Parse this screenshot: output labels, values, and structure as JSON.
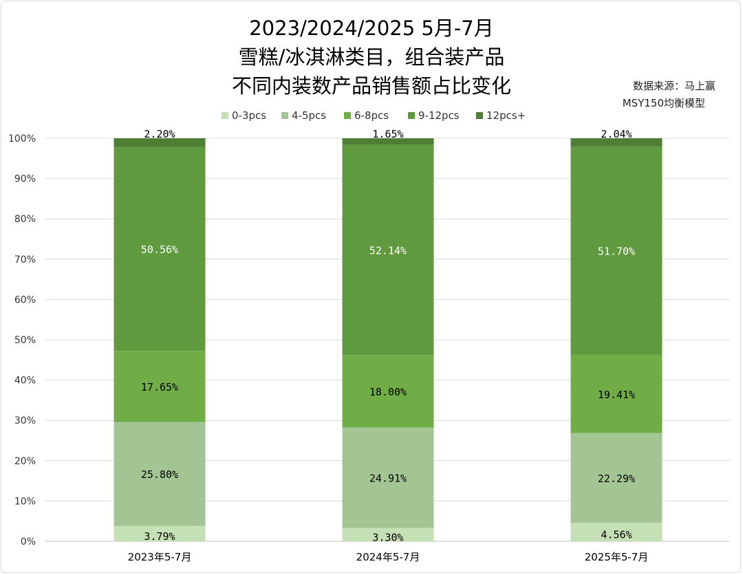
{
  "title_lines": [
    "2023/2024/2025 5月-7月",
    "雪糕/冰淇淋类目，组合装产品",
    "不同内装数产品销售额占比变化"
  ],
  "source": {
    "line1": "数据来源：马上赢",
    "line2": "MSY150均衡模型"
  },
  "colors": {
    "0-3pcs": "#c5e0b4",
    "4-5pcs": "#a2c593",
    "6-8pcs": "#70ad47",
    "9-12pcs": "#609a3e",
    "12pcs+": "#4e7f34"
  },
  "chart_data": {
    "type": "bar",
    "stacked": true,
    "categories": [
      "2023年5-7月",
      "2024年5-7月",
      "2025年5-7月"
    ],
    "series": [
      {
        "name": "0-3pcs",
        "values": [
          3.79,
          3.3,
          4.56
        ],
        "labels": [
          "3.79%",
          "3.30%",
          "4.56%"
        ]
      },
      {
        "name": "4-5pcs",
        "values": [
          25.8,
          24.91,
          22.29
        ],
        "labels": [
          "25.80%",
          "24.91%",
          "22.29%"
        ]
      },
      {
        "name": "6-8pcs",
        "values": [
          17.65,
          18.0,
          19.41
        ],
        "labels": [
          "17.65%",
          "18.00%",
          "19.41%"
        ]
      },
      {
        "name": "9-12pcs",
        "values": [
          50.56,
          52.14,
          51.7
        ],
        "labels": [
          "50.56%",
          "52.14%",
          "51.70%"
        ]
      },
      {
        "name": "12pcs+",
        "values": [
          2.2,
          1.65,
          2.04
        ],
        "labels": [
          "2.20%",
          "1.65%",
          "2.04%"
        ]
      }
    ],
    "y_ticks": [
      "0%",
      "10%",
      "20%",
      "30%",
      "40%",
      "50%",
      "60%",
      "70%",
      "80%",
      "90%",
      "100%"
    ],
    "ylim": [
      0,
      100
    ],
    "grid": true,
    "legend_position": "top"
  }
}
